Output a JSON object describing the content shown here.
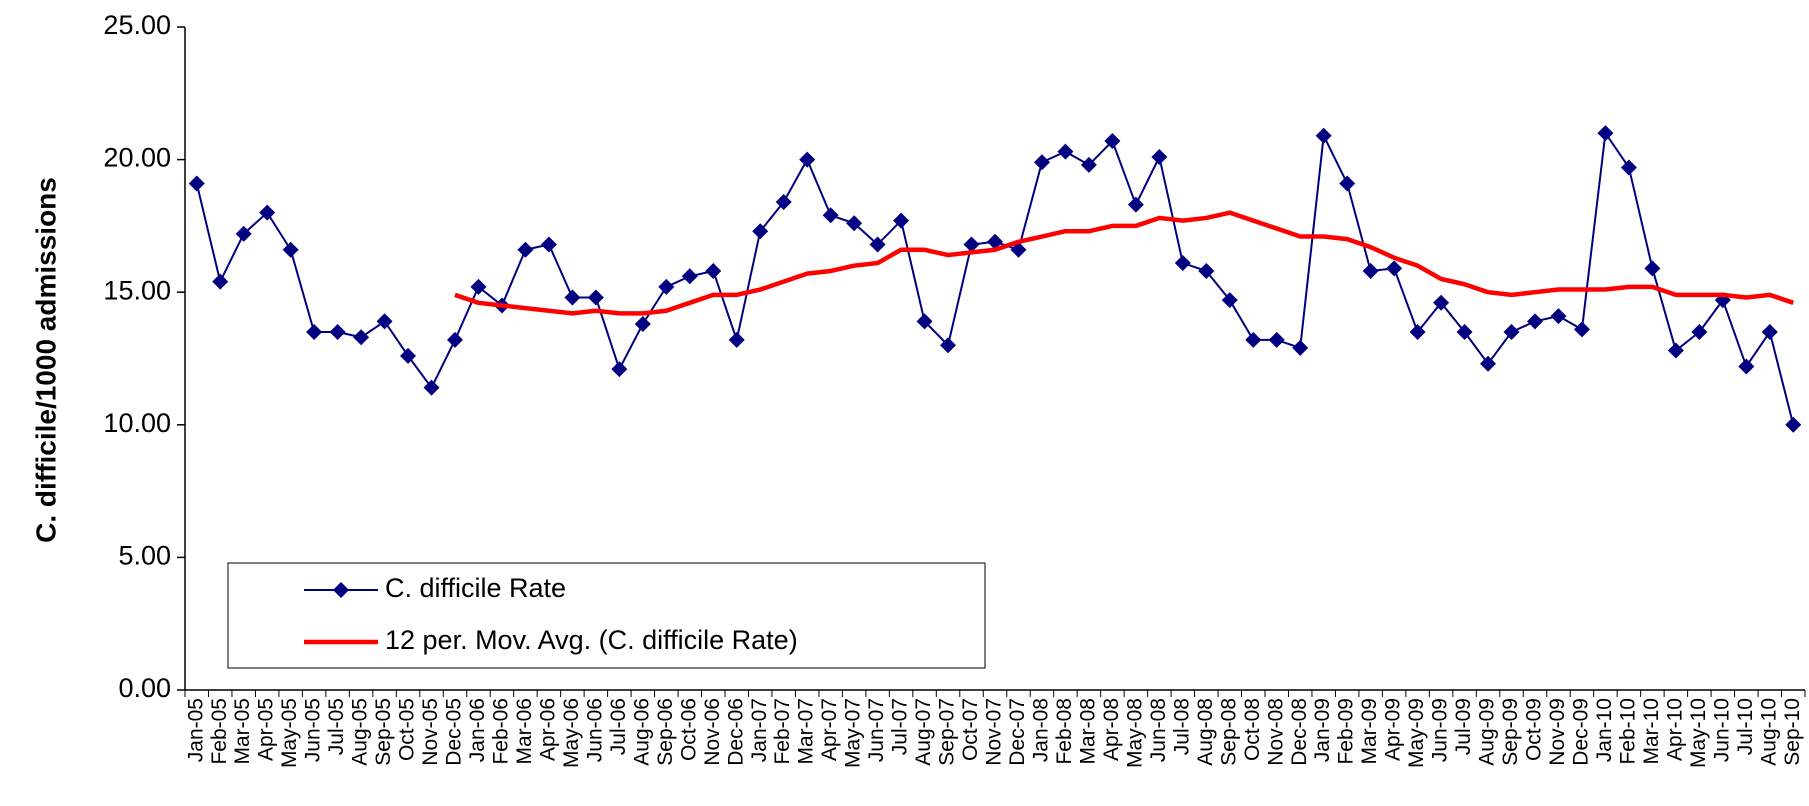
{
  "chart_data": {
    "type": "line",
    "y_label": "C. difficile/1000 admissions",
    "categories": [
      "Jan-05",
      "Feb-05",
      "Mar-05",
      "Apr-05",
      "May-05",
      "Jun-05",
      "Jul-05",
      "Aug-05",
      "Sep-05",
      "Oct-05",
      "Nov-05",
      "Dec-05",
      "Jan-06",
      "Feb-06",
      "Mar-06",
      "Apr-06",
      "May-06",
      "Jun-06",
      "Jul-06",
      "Aug-06",
      "Sep-06",
      "Oct-06",
      "Nov-06",
      "Dec-06",
      "Jan-07",
      "Feb-07",
      "Mar-07",
      "Apr-07",
      "May-07",
      "Jun-07",
      "Jul-07",
      "Aug-07",
      "Sep-07",
      "Oct-07",
      "Nov-07",
      "Dec-07",
      "Jan-08",
      "Feb-08",
      "Mar-08",
      "Apr-08",
      "May-08",
      "Jun-08",
      "Jul-08",
      "Aug-08",
      "Sep-08",
      "Oct-08",
      "Nov-08",
      "Dec-08",
      "Jan-09",
      "Feb-09",
      "Mar-09",
      "Apr-09",
      "May-09",
      "Jun-09",
      "Jul-09",
      "Aug-09",
      "Sep-09",
      "Oct-09",
      "Nov-09",
      "Dec-09",
      "Jan-10",
      "Feb-10",
      "Mar-10",
      "Apr-10",
      "May-10",
      "Jun-10",
      "Jul-10",
      "Aug-10",
      "Sep-10"
    ],
    "series": [
      {
        "name": "C. difficile Rate",
        "color": "#000080",
        "marker": "diamond",
        "values": [
          19.1,
          15.4,
          17.2,
          18.0,
          16.6,
          13.5,
          13.5,
          13.3,
          13.9,
          12.6,
          11.4,
          13.2,
          15.2,
          14.5,
          16.6,
          16.8,
          14.8,
          14.8,
          12.1,
          13.8,
          15.2,
          15.6,
          15.8,
          13.2,
          17.3,
          18.4,
          20.0,
          17.9,
          17.6,
          16.8,
          17.7,
          13.9,
          13.0,
          16.8,
          16.9,
          16.6,
          19.9,
          20.3,
          19.8,
          20.7,
          18.3,
          20.1,
          16.1,
          15.8,
          14.7,
          13.2,
          13.2,
          12.9,
          20.9,
          19.1,
          15.8,
          15.9,
          13.5,
          14.6,
          13.5,
          12.3,
          13.5,
          13.9,
          14.1,
          13.6,
          21.0,
          19.7,
          15.9,
          12.8,
          13.5,
          14.7,
          12.2,
          13.5,
          10.0
        ]
      },
      {
        "name": "12 per. Mov. Avg. (C. difficile Rate)",
        "color": "#ff0000",
        "marker": "none",
        "values": [
          null,
          null,
          null,
          null,
          null,
          null,
          null,
          null,
          null,
          null,
          null,
          14.9,
          14.6,
          14.5,
          14.4,
          14.3,
          14.2,
          14.3,
          14.2,
          14.2,
          14.3,
          14.6,
          14.9,
          14.9,
          15.1,
          15.4,
          15.7,
          15.8,
          16.0,
          16.1,
          16.6,
          16.6,
          16.4,
          16.5,
          16.6,
          16.9,
          17.1,
          17.3,
          17.3,
          17.5,
          17.5,
          17.8,
          17.7,
          17.8,
          18.0,
          17.7,
          17.4,
          17.1,
          17.1,
          17.0,
          16.7,
          16.3,
          16.0,
          15.5,
          15.3,
          15.0,
          14.9,
          15.0,
          15.1,
          15.1,
          15.1,
          15.2,
          15.2,
          14.9,
          14.9,
          14.9,
          14.8,
          14.9,
          14.6
        ]
      }
    ],
    "ylim": [
      0,
      25
    ],
    "yticks": [
      {
        "value": 0,
        "label": "0.00"
      },
      {
        "value": 5,
        "label": "5.00"
      },
      {
        "value": 10,
        "label": "10.00"
      },
      {
        "value": 15,
        "label": "15.00"
      },
      {
        "value": 20,
        "label": "20.00"
      },
      {
        "value": 25,
        "label": "25.00"
      }
    ],
    "grid": false,
    "legend": "lower-left"
  }
}
